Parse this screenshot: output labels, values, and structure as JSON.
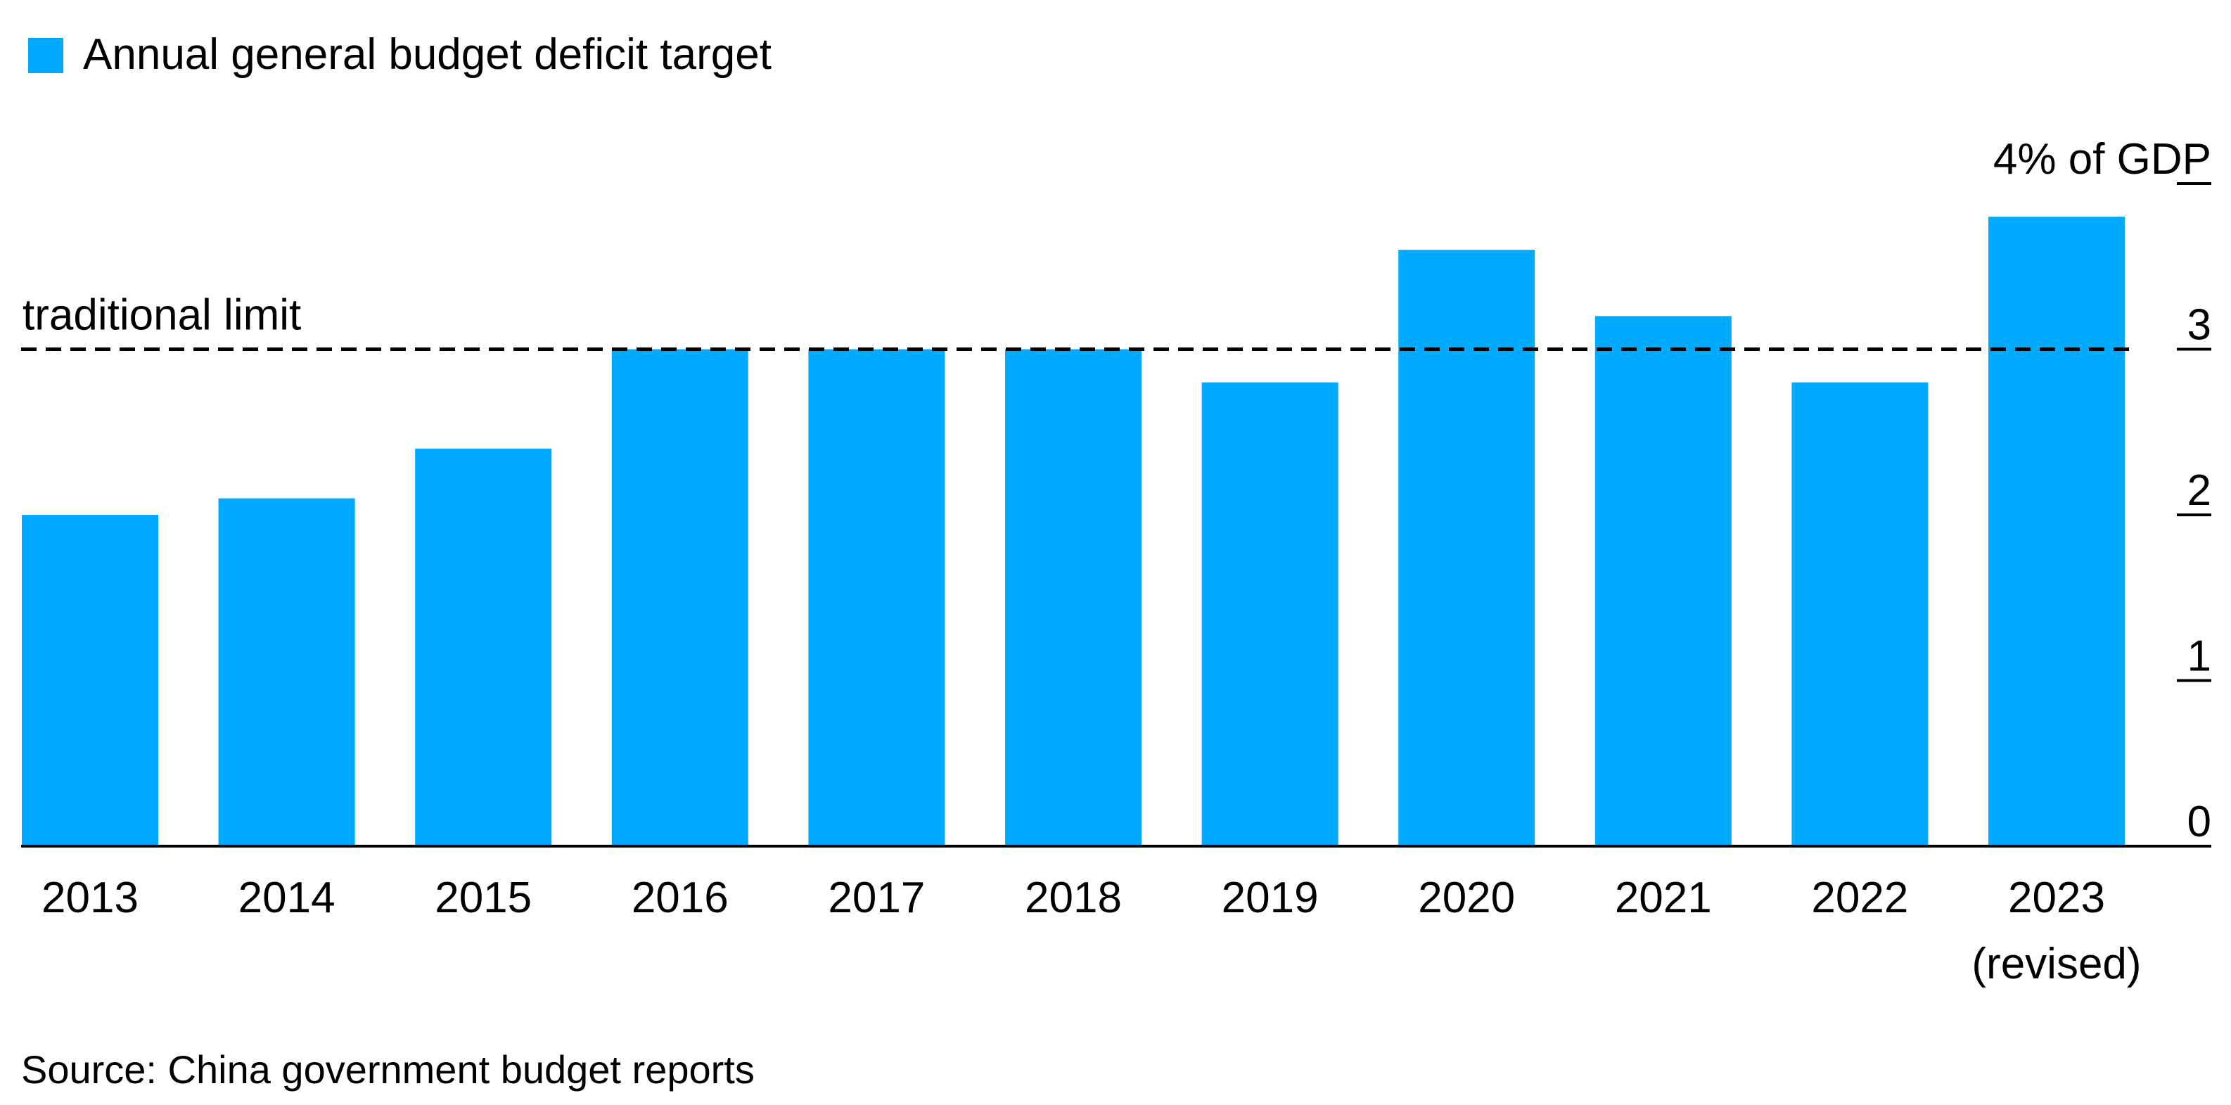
{
  "chart_data": {
    "type": "bar",
    "legend": [
      {
        "label": "Annual general budget deficit target",
        "color": "#00aaff"
      }
    ],
    "categories": [
      "2013",
      "2014",
      "2015",
      "2016",
      "2017",
      "2018",
      "2019",
      "2020",
      "2021",
      "2022",
      "2023\n(revised)"
    ],
    "values": [
      2.0,
      2.1,
      2.4,
      3.0,
      3.0,
      3.0,
      2.8,
      3.6,
      3.2,
      2.8,
      3.8
    ],
    "series": [
      {
        "name": "Annual general budget deficit target",
        "color": "#00aaff",
        "values": [
          2.0,
          2.1,
          2.4,
          3.0,
          3.0,
          3.0,
          2.8,
          3.6,
          3.2,
          2.8,
          3.8
        ]
      }
    ],
    "ylim": [
      0,
      4
    ],
    "yticks": [
      "0",
      "1",
      "2",
      "3",
      "4% of GDP"
    ],
    "ylabel": "% of GDP",
    "y_axis_position": "right",
    "reference_line": {
      "label": "traditional limit",
      "value": 3,
      "style": "dashed"
    },
    "grid": false
  },
  "source": "Source: China government budget reports"
}
